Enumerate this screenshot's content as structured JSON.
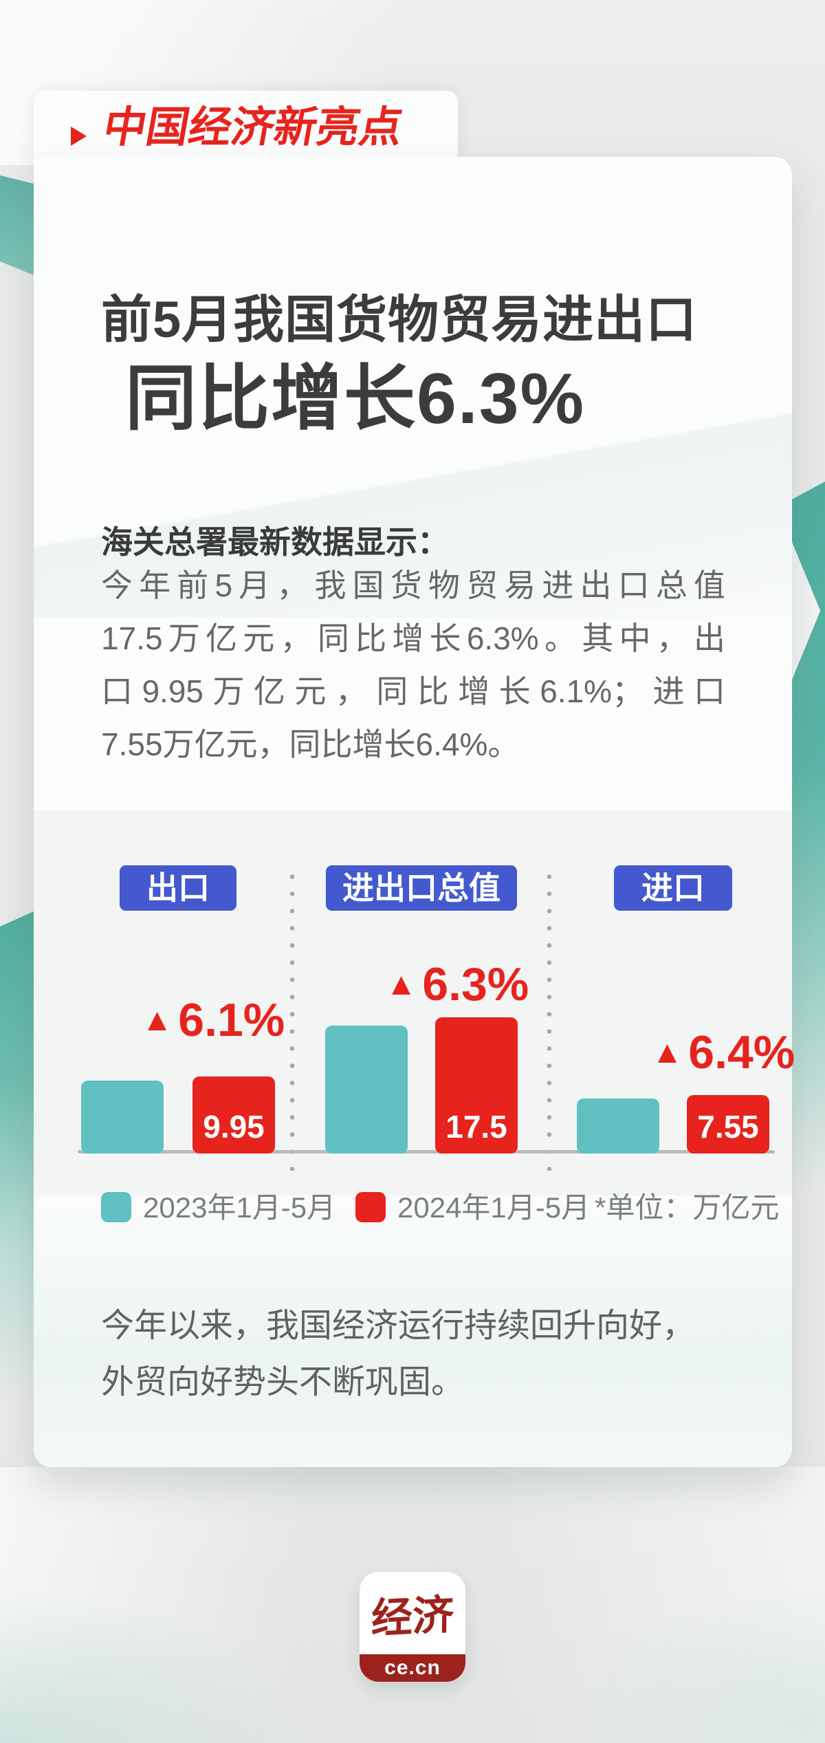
{
  "badge": {
    "icon": "play-triangle",
    "label": "中国经济新亮点"
  },
  "title": {
    "line1": "前5月我国货物贸易进出口",
    "line2": "同比增长6.3%"
  },
  "intro": {
    "heading": "海关总署最新数据显示：",
    "lines": [
      "今年前5月，我国货物贸易进出口总值",
      "17.5万亿元，同比增长6.3%。其中，出",
      "口9.95万亿元，同比增长6.1%；进口",
      "7.55万亿元，同比增长6.4%。"
    ]
  },
  "chart_data": {
    "type": "bar",
    "categories": [
      "出口",
      "进出口总值",
      "进口"
    ],
    "series": [
      {
        "name": "2023年1月-5月",
        "color": "#60C0C2",
        "values": [
          9.38,
          16.46,
          7.1
        ]
      },
      {
        "name": "2024年1月-5月",
        "color": "#E7231D",
        "values": [
          9.95,
          17.5,
          7.55
        ]
      }
    ],
    "value_labels": [
      "9.95",
      "17.5",
      "7.55"
    ],
    "growth_arrow": "▲",
    "growth_labels": [
      "6.1%",
      "6.3%",
      "6.4%"
    ],
    "unit_note": "*单位：万亿元",
    "xlabel": "",
    "ylabel": "",
    "grid": false,
    "legend_position": "bottom"
  },
  "conclusion": {
    "lines": [
      "今年以来，我国经济运行持续回升向好，",
      "外贸向好势头不断巩固。"
    ]
  },
  "logo": {
    "wordmark": "经济",
    "domain": "ce.cn"
  },
  "colors": {
    "accent_red": "#E7231D",
    "teal": "#60C0C2",
    "badge_blue": "#4359CD",
    "logo_red": "#9C231D",
    "title_text": "#3B3C3E",
    "body_text": "#656769",
    "page_bg": "#E8E9E9"
  }
}
